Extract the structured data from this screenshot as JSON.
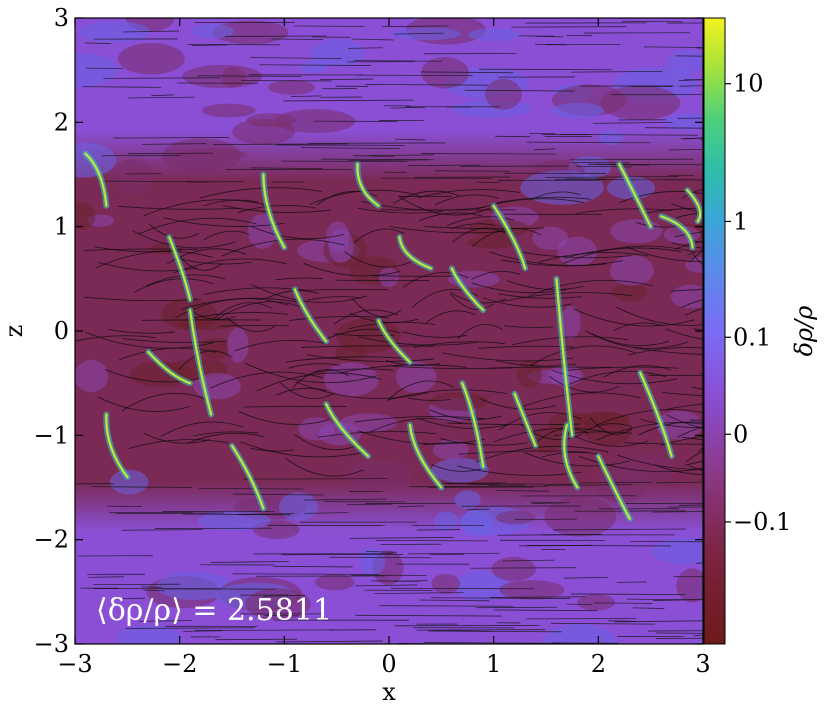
{
  "chart_data": {
    "type": "heatmap",
    "title": "",
    "xlabel": "x",
    "ylabel": "z",
    "xlim": [
      -3,
      3
    ],
    "ylim": [
      -3,
      3
    ],
    "xticks": [
      -3,
      -2,
      -1,
      0,
      1,
      2,
      3
    ],
    "xtick_labels": [
      "−3",
      "−2",
      "−1",
      "0",
      "1",
      "2",
      "3"
    ],
    "yticks": [
      -3,
      -2,
      -1,
      0,
      1,
      2,
      3
    ],
    "ytick_labels": [
      "−3",
      "−2",
      "−1",
      "0",
      "1",
      "2",
      "3"
    ],
    "grid": false,
    "annotation": "⟨δρ/ρ⟩ = 2.5811",
    "colorbar": {
      "label": "δρ/ρ",
      "scale": "symlog",
      "ticks": [
        -0.1,
        0,
        0.1,
        1,
        10
      ],
      "tick_labels": [
        "−0.1",
        "0",
        "0.1",
        "1",
        "10"
      ],
      "cmap": [
        "#6e1a1a",
        "#8b3a8c",
        "#8a4fd4",
        "#7a6cf5",
        "#5a8ce8",
        "#3aa6d6",
        "#2fbea8",
        "#4fd07a",
        "#a5e23c",
        "#f2f31e"
      ]
    },
    "field_description": "density perturbation with overlaid streamlines; dense band |z|<~1.3 with negative values, filaments of high values, weak field lines outside"
  },
  "colors": {
    "low": "#6e1a1a",
    "background_purple": "#8a4fd4",
    "filament": "#b8e83a",
    "filament_cyan": "#33c0b0",
    "streamline": "#000000"
  }
}
